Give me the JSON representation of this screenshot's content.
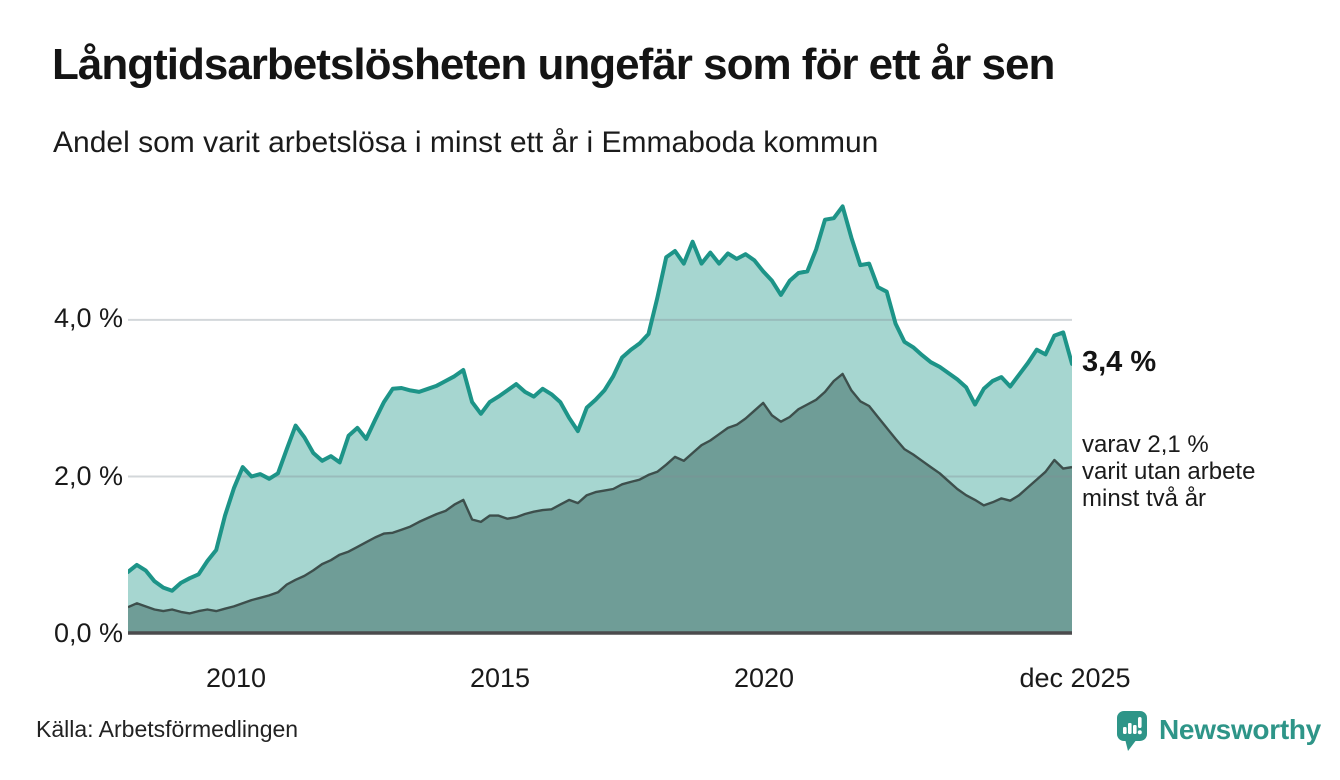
{
  "header": {
    "title": "Långtidsarbetslösheten ungefär som för ett år sen",
    "subtitle": "Andel som varit arbetslösa i minst ett år i Emmaboda kommun"
  },
  "annotations": {
    "primary": "3,4 %",
    "secondary": "varav 2,1 %\nvarit utan arbete\nminst två år"
  },
  "footer": {
    "source": "Källa: Arbetsförmedlingen",
    "brand": "Newsworthy"
  },
  "colors": {
    "line_one_year": "#1D9488",
    "fill_one_year": "#A6D6D0",
    "line_two_years": "#3D4F4C",
    "fill_two_years": "#6F9D97",
    "gridline": "rgba(128,140,148,0.35)",
    "baseline": "#4B4B4D",
    "brand_teal": "#2E9588"
  },
  "chart_data": {
    "type": "area",
    "title": "Långtidsarbetslösheten ungefär som för ett år sen",
    "subtitle": "Andel som varit arbetslösa i minst ett år i Emmaboda kommun",
    "unit": "%",
    "x_start": "2008-01",
    "x_end": "2025-12",
    "step_months": 2,
    "ylim": [
      0,
      5.66
    ],
    "grid_values": [
      2,
      4
    ],
    "y_axis": {
      "ticks": [
        {
          "label": "0,0 %",
          "value": 0
        },
        {
          "label": "2,0 %",
          "value": 2
        },
        {
          "label": "4,0 %",
          "value": 4
        }
      ]
    },
    "x_axis": {
      "ticks": [
        {
          "label": "2010"
        },
        {
          "label": "2015"
        },
        {
          "label": "2020"
        },
        {
          "label": "dec 2025"
        }
      ]
    },
    "series": [
      {
        "name": "Andel arbetslösa minst ett år",
        "end_value": 3.4,
        "end_label": "3,4 %",
        "values": [
          0.78,
          0.87,
          0.8,
          0.66,
          0.58,
          0.54,
          0.64,
          0.7,
          0.75,
          0.92,
          1.06,
          1.5,
          1.85,
          2.12,
          2.0,
          2.03,
          1.97,
          2.04,
          2.35,
          2.65,
          2.5,
          2.3,
          2.2,
          2.26,
          2.18,
          2.52,
          2.62,
          2.48,
          2.72,
          2.95,
          3.12,
          3.13,
          3.1,
          3.08,
          3.12,
          3.16,
          3.22,
          3.28,
          3.36,
          2.95,
          2.8,
          2.95,
          3.02,
          3.1,
          3.18,
          3.08,
          3.02,
          3.12,
          3.05,
          2.95,
          2.75,
          2.58,
          2.88,
          2.98,
          3.1,
          3.28,
          3.52,
          3.62,
          3.7,
          3.82,
          4.28,
          4.8,
          4.88,
          4.72,
          5.0,
          4.72,
          4.86,
          4.72,
          4.85,
          4.78,
          4.84,
          4.76,
          4.62,
          4.5,
          4.32,
          4.5,
          4.6,
          4.62,
          4.9,
          5.28,
          5.3,
          5.45,
          5.05,
          4.7,
          4.72,
          4.42,
          4.36,
          3.95,
          3.72,
          3.65,
          3.55,
          3.46,
          3.4,
          3.32,
          3.24,
          3.14,
          2.92,
          3.12,
          3.22,
          3.27,
          3.15,
          3.3,
          3.45,
          3.62,
          3.56,
          3.8,
          3.84,
          3.44
        ]
      },
      {
        "name": "Andel arbetslösa minst två år",
        "end_value": 2.1,
        "end_label": "varav 2,1 % varit utan arbete minst två år",
        "values": [
          0.33,
          0.38,
          0.34,
          0.3,
          0.28,
          0.3,
          0.27,
          0.25,
          0.28,
          0.3,
          0.28,
          0.31,
          0.34,
          0.38,
          0.42,
          0.45,
          0.48,
          0.52,
          0.62,
          0.68,
          0.73,
          0.8,
          0.88,
          0.93,
          1.0,
          1.04,
          1.1,
          1.16,
          1.22,
          1.27,
          1.28,
          1.32,
          1.36,
          1.42,
          1.47,
          1.52,
          1.56,
          1.64,
          1.7,
          1.45,
          1.42,
          1.5,
          1.5,
          1.46,
          1.48,
          1.52,
          1.55,
          1.57,
          1.58,
          1.64,
          1.7,
          1.66,
          1.76,
          1.8,
          1.82,
          1.84,
          1.9,
          1.93,
          1.96,
          2.02,
          2.06,
          2.15,
          2.25,
          2.2,
          2.3,
          2.4,
          2.46,
          2.54,
          2.62,
          2.66,
          2.74,
          2.84,
          2.94,
          2.78,
          2.7,
          2.76,
          2.86,
          2.92,
          2.98,
          3.08,
          3.22,
          3.31,
          3.1,
          2.96,
          2.9,
          2.76,
          2.62,
          2.48,
          2.35,
          2.28,
          2.2,
          2.12,
          2.04,
          1.94,
          1.84,
          1.76,
          1.7,
          1.63,
          1.67,
          1.72,
          1.69,
          1.76,
          1.86,
          1.96,
          2.06,
          2.21,
          2.1,
          2.12
        ]
      }
    ]
  }
}
